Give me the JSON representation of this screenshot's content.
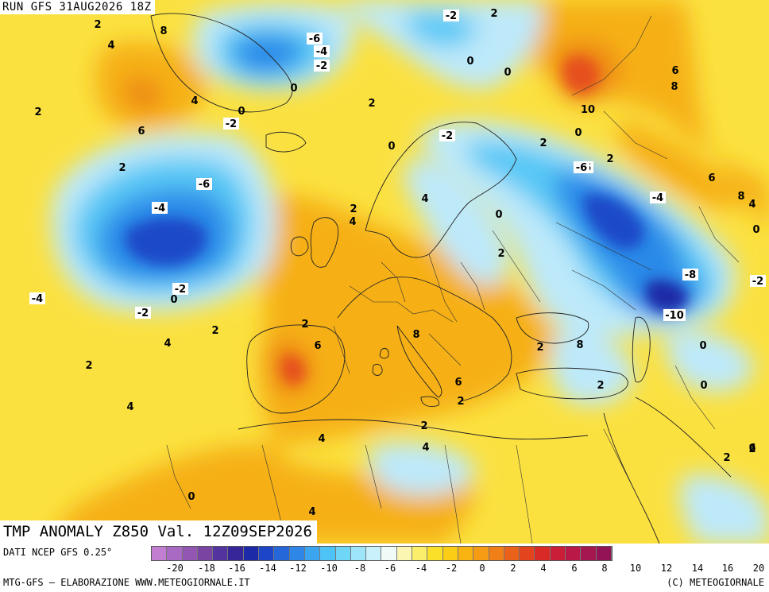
{
  "header": {
    "run_label": "RUN GFS 31AUG2026 18Z",
    "map_title": "TMP ANOMALY Z850 Val. 12Z09SEP2026"
  },
  "footer": {
    "data_source": "DATI NCEP GFS 0.25°",
    "credit_left": "MTG-GFS – ELABORAZIONE WWW.METEOGIORNALE.IT",
    "credit_right": "(C) METEOGIORNALE"
  },
  "legend": {
    "swatch_colors": [
      "#c27fd1",
      "#a86ac3",
      "#9157b3",
      "#7a44a3",
      "#53339e",
      "#36269a",
      "#1c2aa8",
      "#1d45c7",
      "#2566d8",
      "#2e86e6",
      "#3ba5f0",
      "#4ec3f6",
      "#6fd6f8",
      "#9ee5fa",
      "#c8f1fb",
      "#f0fbf7",
      "#fbf6b2",
      "#fbee6b",
      "#fbe02a",
      "#fbcd14",
      "#f9b412",
      "#f59b14",
      "#f07f17",
      "#ea611a",
      "#e3431d",
      "#d92a25",
      "#c91d38",
      "#b81946",
      "#a5174f",
      "#931456"
    ],
    "tick_values": [
      "-20",
      "-18",
      "-16",
      "-14",
      "-12",
      "-10",
      "-8",
      "-6",
      "-4",
      "-2",
      "0",
      "2",
      "4",
      "6",
      "8",
      "10",
      "12",
      "14",
      "16",
      "20"
    ]
  },
  "map": {
    "palette": {
      "ocean_warm": "#fbe140",
      "warm_orange": "#f6b016",
      "hot_orange": "#ee8a18",
      "hot_red": "#e6501c",
      "cold_light": "#bde9fa",
      "cold_cyan": "#57c7f5",
      "cold_blue": "#2b8ae8",
      "cold_deep": "#1d49c8",
      "cold_navy": "#1c2aa8"
    },
    "contour_labels": [
      "2",
      "4",
      "8",
      "2",
      "6",
      "2",
      "4",
      "-6",
      "-4",
      "-2",
      "0",
      "-2",
      "0",
      "2",
      "-2",
      "0",
      "-6",
      "-4",
      "-2",
      "0",
      "2",
      "4",
      "-4",
      "-2",
      "2",
      "4",
      "2",
      "-6",
      "0",
      "2",
      "0",
      "4",
      "2",
      "6",
      "8",
      "10",
      "-2",
      "-6",
      "-4",
      "6",
      "8",
      "4",
      "0",
      "2",
      "0",
      "-8",
      "-2",
      "-10",
      "2",
      "6",
      "8",
      "2",
      "8",
      "0",
      "2",
      "0",
      "6",
      "2",
      "4",
      "4",
      "2",
      "4",
      "0",
      "6",
      "2",
      "4",
      "2",
      "0",
      "2"
    ]
  }
}
